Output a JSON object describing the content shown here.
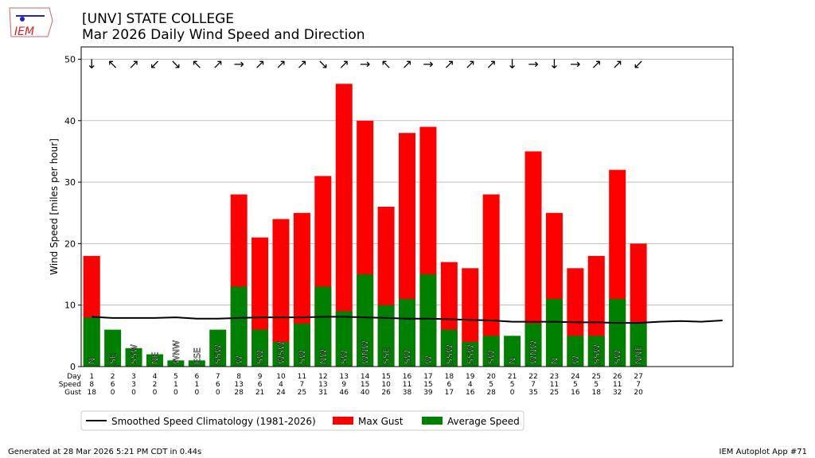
{
  "header": {
    "title_line1": "[UNV] STATE COLLEGE",
    "title_line2": "Mar 2026 Daily Wind Speed and Direction",
    "logo_text": "IEM"
  },
  "footer": {
    "left": "Generated at 28 Mar 2026 5:21 PM CDT in 0.44s",
    "right": "IEM Autoplot App #71"
  },
  "colors": {
    "gust": "#ff0000",
    "speed": "#008000",
    "clim": "#000000"
  },
  "chart_data": {
    "type": "bar",
    "ylabel": "Wind Speed [miles per hour]",
    "ylim": [
      0,
      52
    ],
    "yticks": [
      0,
      10,
      20,
      30,
      40,
      50
    ],
    "xlim": [
      0.5,
      31.5
    ],
    "row_labels": [
      "Day",
      "Speed",
      "Gust"
    ],
    "days": [
      1,
      2,
      3,
      4,
      5,
      6,
      7,
      8,
      9,
      10,
      11,
      12,
      13,
      14,
      15,
      16,
      17,
      18,
      19,
      20,
      21,
      22,
      23,
      24,
      25,
      26,
      27
    ],
    "speed": [
      8,
      6,
      3,
      2,
      1,
      1,
      6,
      13,
      6,
      4,
      7,
      13,
      9,
      15,
      10,
      11,
      15,
      6,
      4,
      5,
      5,
      7,
      11,
      5,
      5,
      11,
      7
    ],
    "gust": [
      18,
      0,
      0,
      0,
      0,
      0,
      0,
      28,
      21,
      24,
      25,
      31,
      46,
      40,
      26,
      38,
      39,
      17,
      16,
      28,
      0,
      35,
      25,
      16,
      18,
      32,
      20
    ],
    "direction": [
      "N",
      "SE",
      "SSW",
      "NE",
      "WNW",
      "ESE",
      "SSW",
      "W",
      "SW",
      "WSW",
      "SW",
      "NW",
      "SW",
      "WNW",
      "SSE",
      "SW",
      "W",
      "SSW",
      "SSW",
      "SW",
      "N",
      "WNW",
      "N",
      "W",
      "SSW",
      "SW",
      "NNE"
    ],
    "arrows": [
      "↓",
      "↖",
      "↗",
      "↙",
      "↘",
      "↖",
      "↗",
      "→",
      "↗",
      "↗",
      "↗",
      "↘",
      "↗",
      "→",
      "↖",
      "↗",
      "→",
      "↗",
      "↗",
      "↗",
      "↓",
      "→",
      "↓",
      "→",
      "↗",
      "↗",
      "↙"
    ],
    "climatology": [
      8.1,
      7.9,
      7.9,
      7.9,
      8.0,
      7.8,
      7.8,
      7.9,
      8.0,
      8.0,
      8.0,
      8.1,
      8.1,
      8.0,
      7.9,
      7.8,
      7.8,
      7.7,
      7.6,
      7.5,
      7.3,
      7.3,
      7.3,
      7.2,
      7.2,
      7.1,
      7.1,
      7.3,
      7.4,
      7.3,
      7.5
    ],
    "legend": [
      "Smoothed Speed Climatology (1981-2026)",
      "Max Gust",
      "Average Speed"
    ],
    "legend_placement": "bottom-left"
  }
}
